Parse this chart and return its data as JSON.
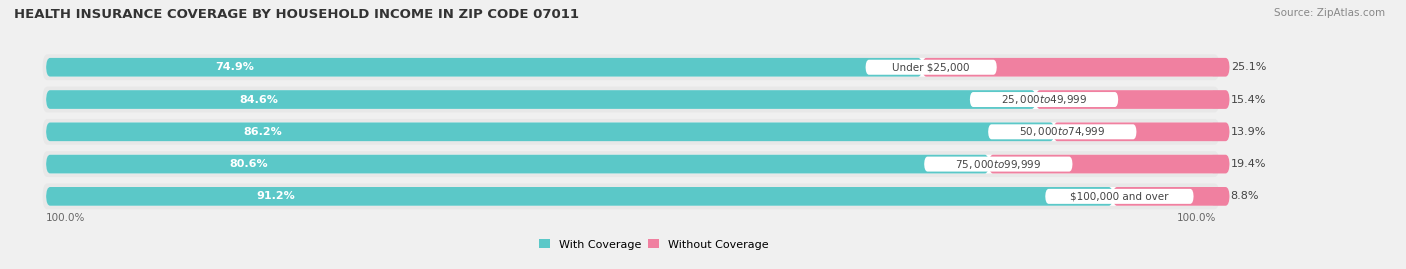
{
  "title": "HEALTH INSURANCE COVERAGE BY HOUSEHOLD INCOME IN ZIP CODE 07011",
  "source": "Source: ZipAtlas.com",
  "categories": [
    "Under $25,000",
    "$25,000 to $49,999",
    "$50,000 to $74,999",
    "$75,000 to $99,999",
    "$100,000 and over"
  ],
  "with_coverage": [
    74.9,
    84.6,
    86.2,
    80.6,
    91.2
  ],
  "without_coverage": [
    25.1,
    15.4,
    13.9,
    19.4,
    8.8
  ],
  "coverage_color": "#5BC8C8",
  "no_coverage_color": "#F080A0",
  "background_color": "#f0f0f0",
  "bar_background": "#e8e8e8",
  "bar_inner_bg": "#ffffff",
  "title_fontsize": 9.5,
  "label_fontsize": 8.0,
  "source_fontsize": 7.5,
  "left_label_100": "100.0%",
  "right_label_100": "100.0%"
}
